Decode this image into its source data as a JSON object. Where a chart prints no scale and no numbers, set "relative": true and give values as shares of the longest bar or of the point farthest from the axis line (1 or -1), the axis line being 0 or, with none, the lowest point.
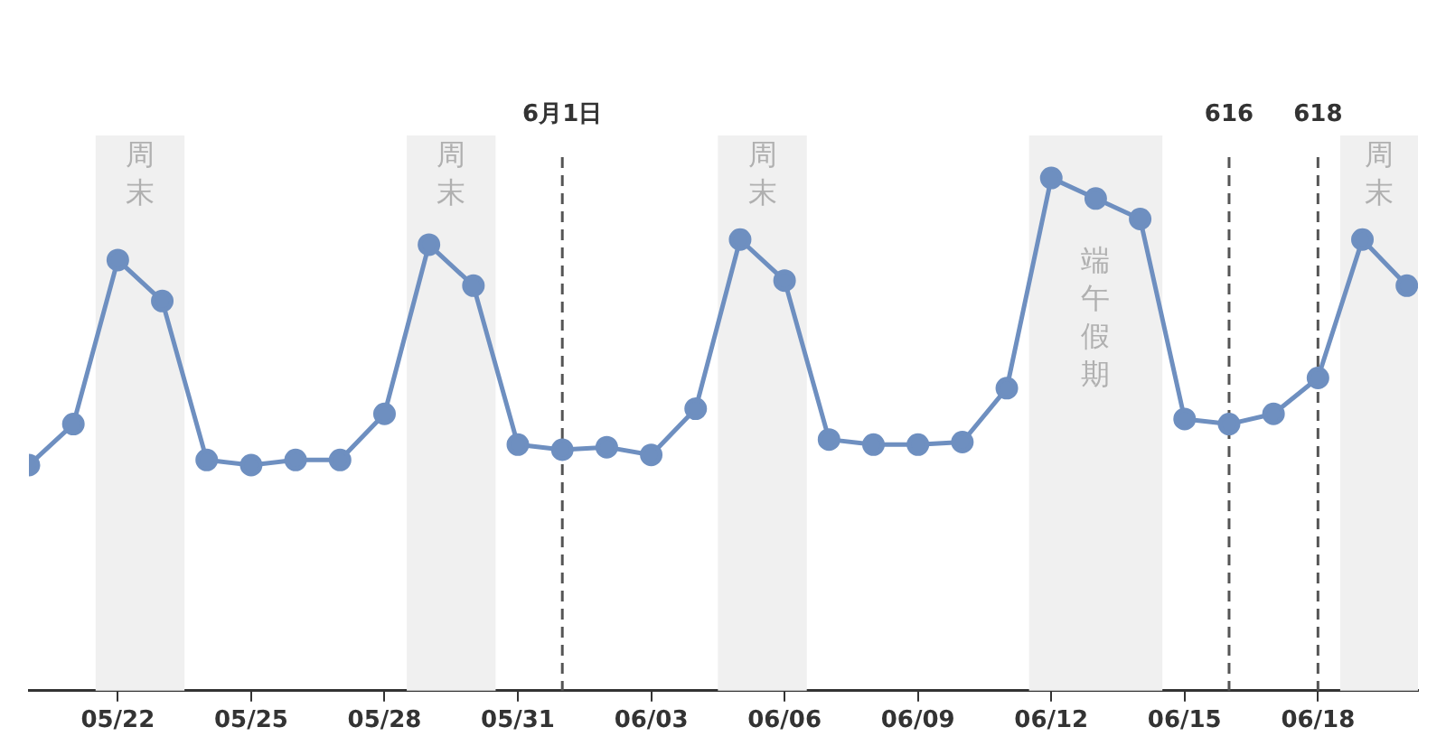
{
  "chart_data": {
    "type": "line",
    "relative": true,
    "x": [
      "--05-20",
      "--05-21",
      "--05-22",
      "--05-23",
      "--05-24",
      "--05-25",
      "--05-26",
      "--05-27",
      "--05-28",
      "--05-29",
      "--05-30",
      "--05-31",
      "--06-01",
      "--06-02",
      "--06-03",
      "--06-04",
      "--06-05",
      "--06-06",
      "--06-07",
      "--06-08",
      "--06-09",
      "--06-10",
      "--06-11",
      "--06-12",
      "--06-13",
      "--06-14",
      "--06-15",
      "--06-16",
      "--06-17",
      "--06-18",
      "--06-19",
      "--06-20"
    ],
    "series": [
      {
        "color": "#6e8fc0",
        "values": [
          0.44,
          0.52,
          0.84,
          0.76,
          0.45,
          0.44,
          0.45,
          0.45,
          0.54,
          0.87,
          0.79,
          0.48,
          0.47,
          0.475,
          0.46,
          0.55,
          0.88,
          0.8,
          0.49,
          0.48,
          0.48,
          0.485,
          0.59,
          1,
          0.96,
          0.92,
          0.53,
          0.52,
          0.54,
          0.61,
          0.88,
          0.79
        ]
      }
    ],
    "xlim": [
      "--05-20",
      "--06-20T06:00"
    ],
    "xticks": [
      {
        "value": "--05-22",
        "label": "05/22"
      },
      {
        "value": "--05-25",
        "label": "05/25"
      },
      {
        "value": "--05-28",
        "label": "05/28"
      },
      {
        "value": "--05-31",
        "label": "05/31"
      },
      {
        "value": "--06-03",
        "label": "06/03"
      },
      {
        "value": "--06-06",
        "label": "06/06"
      },
      {
        "value": "--06-09",
        "label": "06/09"
      },
      {
        "value": "--06-12",
        "label": "06/12"
      },
      {
        "value": "--06-15",
        "label": "06/15"
      },
      {
        "value": "--06-18",
        "label": "06/18"
      }
    ],
    "bands": [
      {
        "axis": "x",
        "from": "--05-21T12:00",
        "to": "--05-23T12:00",
        "label": "周末",
        "color": "#f0f0f0"
      },
      {
        "axis": "x",
        "from": "--05-28T12:00",
        "to": "--05-30T12:00",
        "label": "周末",
        "color": "#f0f0f0"
      },
      {
        "axis": "x",
        "from": "--06-04T12:00",
        "to": "--06-06T12:00",
        "label": "周末",
        "color": "#f0f0f0"
      },
      {
        "axis": "x",
        "from": "--06-11T12:00",
        "to": "--06-14T12:00",
        "label": "端午假期",
        "color": "#f0f0f0"
      },
      {
        "axis": "x",
        "from": "--06-18T12:00",
        "to": "--06-20T06:00",
        "label": "周末",
        "color": "#f0f0f0"
      }
    ],
    "ref_lines": [
      {
        "axis": "x",
        "value": "--06-01",
        "label": "6月1日",
        "color": "#555555",
        "line_style": "dashed"
      },
      {
        "axis": "x",
        "value": "--06-16",
        "label": "616",
        "color": "#555555",
        "line_style": "dashed"
      },
      {
        "axis": "x",
        "value": "--06-18",
        "label": "618",
        "color": "#555555",
        "line_style": "dashed"
      }
    ],
    "marker": "circle",
    "line_style": "solid",
    "grid": false,
    "legend": false
  }
}
